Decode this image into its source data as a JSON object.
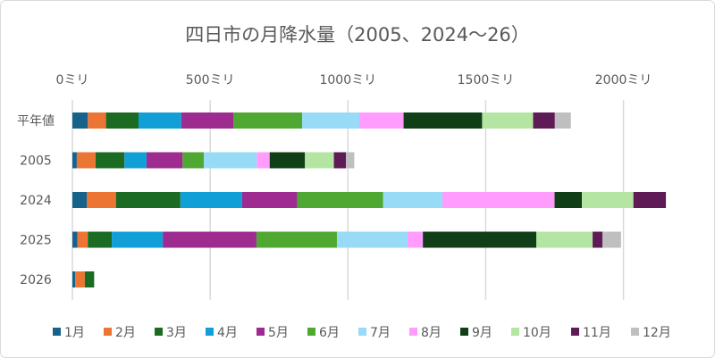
{
  "chart_data": {
    "type": "bar",
    "orientation": "horizontal",
    "stacked": true,
    "title": "四日市の月降水量（2005、2024～26）",
    "xlabel": "",
    "ylabel": "",
    "xlim": [
      0,
      2150
    ],
    "x_ticks": [
      {
        "value": 0,
        "label": "0ミリ"
      },
      {
        "value": 500,
        "label": "500ミリ"
      },
      {
        "value": 1000,
        "label": "1000ミリ"
      },
      {
        "value": 1500,
        "label": "1500ミリ"
      },
      {
        "value": 2000,
        "label": "2000ミリ"
      }
    ],
    "grid": true,
    "legend_position": "bottom",
    "categories": [
      "平年値",
      "2005",
      "2024",
      "2025",
      "2026"
    ],
    "series": [
      {
        "name": "1月",
        "color": "#17628a",
        "values": [
          56,
          16,
          53,
          18,
          10
        ]
      },
      {
        "name": "2月",
        "color": "#ec7533",
        "values": [
          66,
          68,
          105,
          38,
          35
        ]
      },
      {
        "name": "3月",
        "color": "#1b6b23",
        "values": [
          118,
          105,
          234,
          87,
          34
        ]
      },
      {
        "name": "4月",
        "color": "#10a0d7",
        "values": [
          155,
          80,
          224,
          185,
          0
        ]
      },
      {
        "name": "5月",
        "color": "#9d2b90",
        "values": [
          189,
          131,
          200,
          340,
          0
        ]
      },
      {
        "name": "6月",
        "color": "#4fa832",
        "values": [
          250,
          77,
          312,
          292,
          0
        ]
      },
      {
        "name": "7月",
        "color": "#97dbf6",
        "values": [
          207,
          192,
          215,
          256,
          0
        ]
      },
      {
        "name": "8月",
        "color": "#ff9cfd",
        "values": [
          161,
          47,
          407,
          56,
          0
        ]
      },
      {
        "name": "9月",
        "color": "#103f17",
        "values": [
          285,
          128,
          99,
          412,
          0
        ]
      },
      {
        "name": "10月",
        "color": "#b5e5a2",
        "values": [
          185,
          105,
          187,
          204,
          0
        ]
      },
      {
        "name": "11月",
        "color": "#5f1b55",
        "values": [
          79,
          44,
          118,
          36,
          0
        ]
      },
      {
        "name": "12月",
        "color": "#bfbfbf",
        "values": [
          58,
          30,
          0,
          67,
          0
        ]
      }
    ]
  }
}
